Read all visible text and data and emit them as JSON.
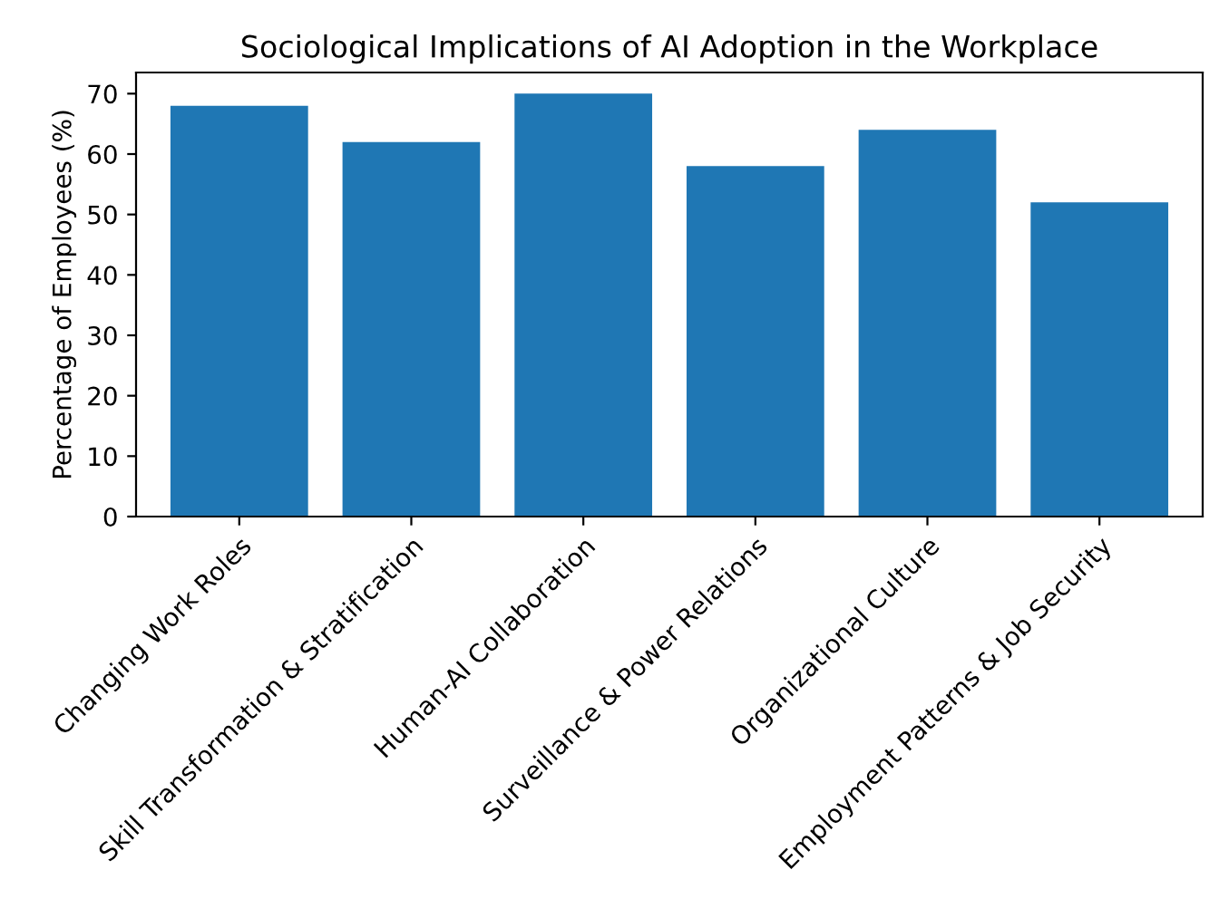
{
  "chart_data": {
    "type": "bar",
    "title": "Sociological Implications of AI Adoption in the Workplace",
    "ylabel": "Percentage of Employees (%)",
    "categories": [
      "Changing Work Roles",
      "Skill Transformation & Stratification",
      "Human-AI Collaboration",
      "Surveillance & Power Relations",
      "Organizational Culture",
      "Employment Patterns & Job Security"
    ],
    "values": [
      68,
      62,
      70,
      58,
      64,
      52
    ],
    "color": "#1f77b4",
    "ylim": [
      0,
      73.5
    ],
    "yticks": [
      0,
      10,
      20,
      30,
      40,
      50,
      60,
      70
    ],
    "grid": false
  }
}
